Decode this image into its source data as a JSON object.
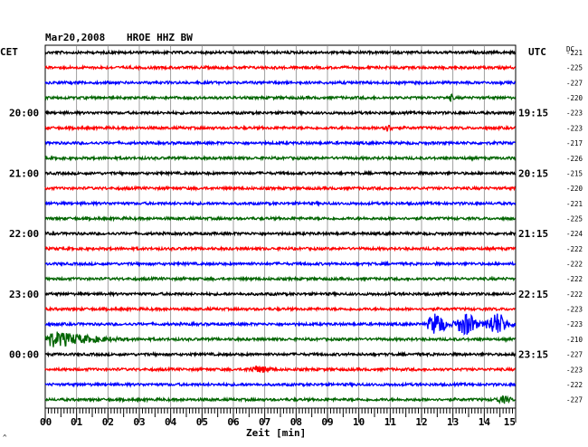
{
  "header": {
    "date": "Mar20,2008",
    "station": "HROE HHZ BW",
    "left_tz": "CET",
    "right_tz": "UTC",
    "dc_label": "DC"
  },
  "footer": {
    "xlabel": "Zeit [min]",
    "corner_mark": "^"
  },
  "colors": {
    "trace_cycle": [
      "#000000",
      "#ff0000",
      "#0000ff",
      "#006400"
    ],
    "grid": "#888888"
  },
  "chart_data": {
    "type": "line",
    "title": "Mar20,2008   HROE HHZ BW",
    "xlabel": "Zeit [min]",
    "xlim": [
      0,
      15
    ],
    "x_ticks": [
      "00",
      "01",
      "02",
      "03",
      "04",
      "05",
      "06",
      "07",
      "08",
      "09",
      "10",
      "11",
      "12",
      "13",
      "14",
      "15"
    ],
    "rows": 24,
    "row_minutes": 15,
    "left_time_labels": [
      {
        "row": 4,
        "text": "20:00"
      },
      {
        "row": 8,
        "text": "21:00"
      },
      {
        "row": 12,
        "text": "22:00"
      },
      {
        "row": 16,
        "text": "23:00"
      },
      {
        "row": 20,
        "text": "00:00"
      }
    ],
    "right_time_labels": [
      {
        "row": 4,
        "text": "19:15"
      },
      {
        "row": 8,
        "text": "20:15"
      },
      {
        "row": 12,
        "text": "21:15"
      },
      {
        "row": 16,
        "text": "22:15"
      },
      {
        "row": 20,
        "text": "23:15"
      }
    ],
    "dc_offsets": [
      -221,
      -225,
      -227,
      -220,
      -223,
      -223,
      -217,
      -226,
      -215,
      -220,
      -221,
      -225,
      -224,
      -222,
      -222,
      -222,
      -222,
      -223,
      -223,
      -210,
      -227,
      -223,
      -222,
      -227
    ],
    "events": [
      {
        "row": 18,
        "start_min": 12.2,
        "end_min": 15.0,
        "amplitude": "large"
      },
      {
        "row": 19,
        "start_min": 0.0,
        "end_min": 4.0,
        "amplitude": "large"
      },
      {
        "row": 21,
        "start_min": 6.2,
        "end_min": 7.5,
        "amplitude": "small"
      },
      {
        "row": 3,
        "start_min": 12.8,
        "end_min": 13.1,
        "amplitude": "small"
      },
      {
        "row": 5,
        "start_min": 10.6,
        "end_min": 11.2,
        "amplitude": "small"
      },
      {
        "row": 23,
        "start_min": 14.2,
        "end_min": 15.0,
        "amplitude": "small"
      }
    ]
  }
}
